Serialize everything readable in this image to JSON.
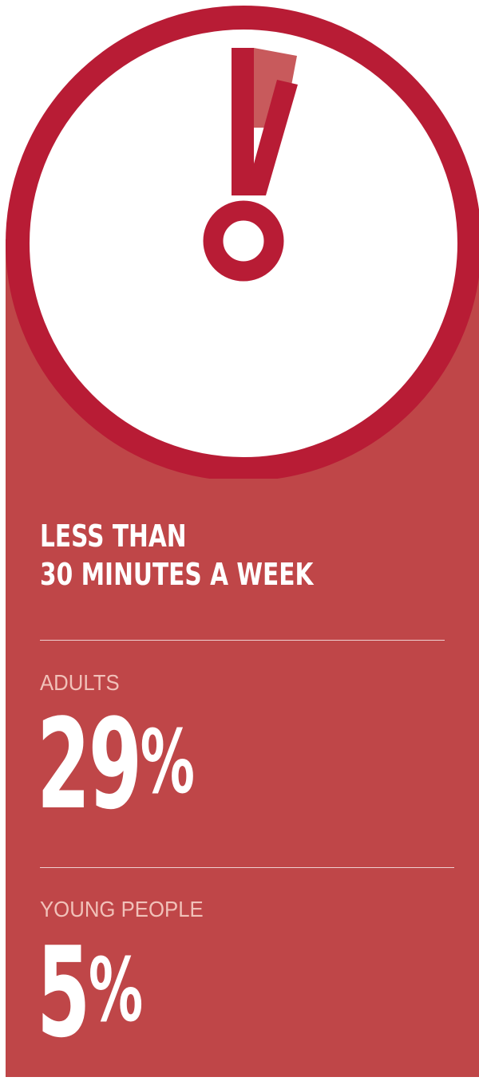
{
  "colors": {
    "accent_dark": "#b81c35",
    "panel": "#bf4648",
    "sector": "#c85a5c",
    "label": "#f1c1b9",
    "text": "#ffffff"
  },
  "clock": {
    "icon": "stopwatch-icon",
    "hand_icon": "exclamation-hand-icon"
  },
  "headline": {
    "line1": "LESS THAN",
    "line2": "30 MINUTES A WEEK"
  },
  "stats": [
    {
      "label": "ADULTS",
      "value": "29",
      "unit": "%"
    },
    {
      "label": "YOUNG PEOPLE",
      "value": "5",
      "unit": "%"
    }
  ]
}
